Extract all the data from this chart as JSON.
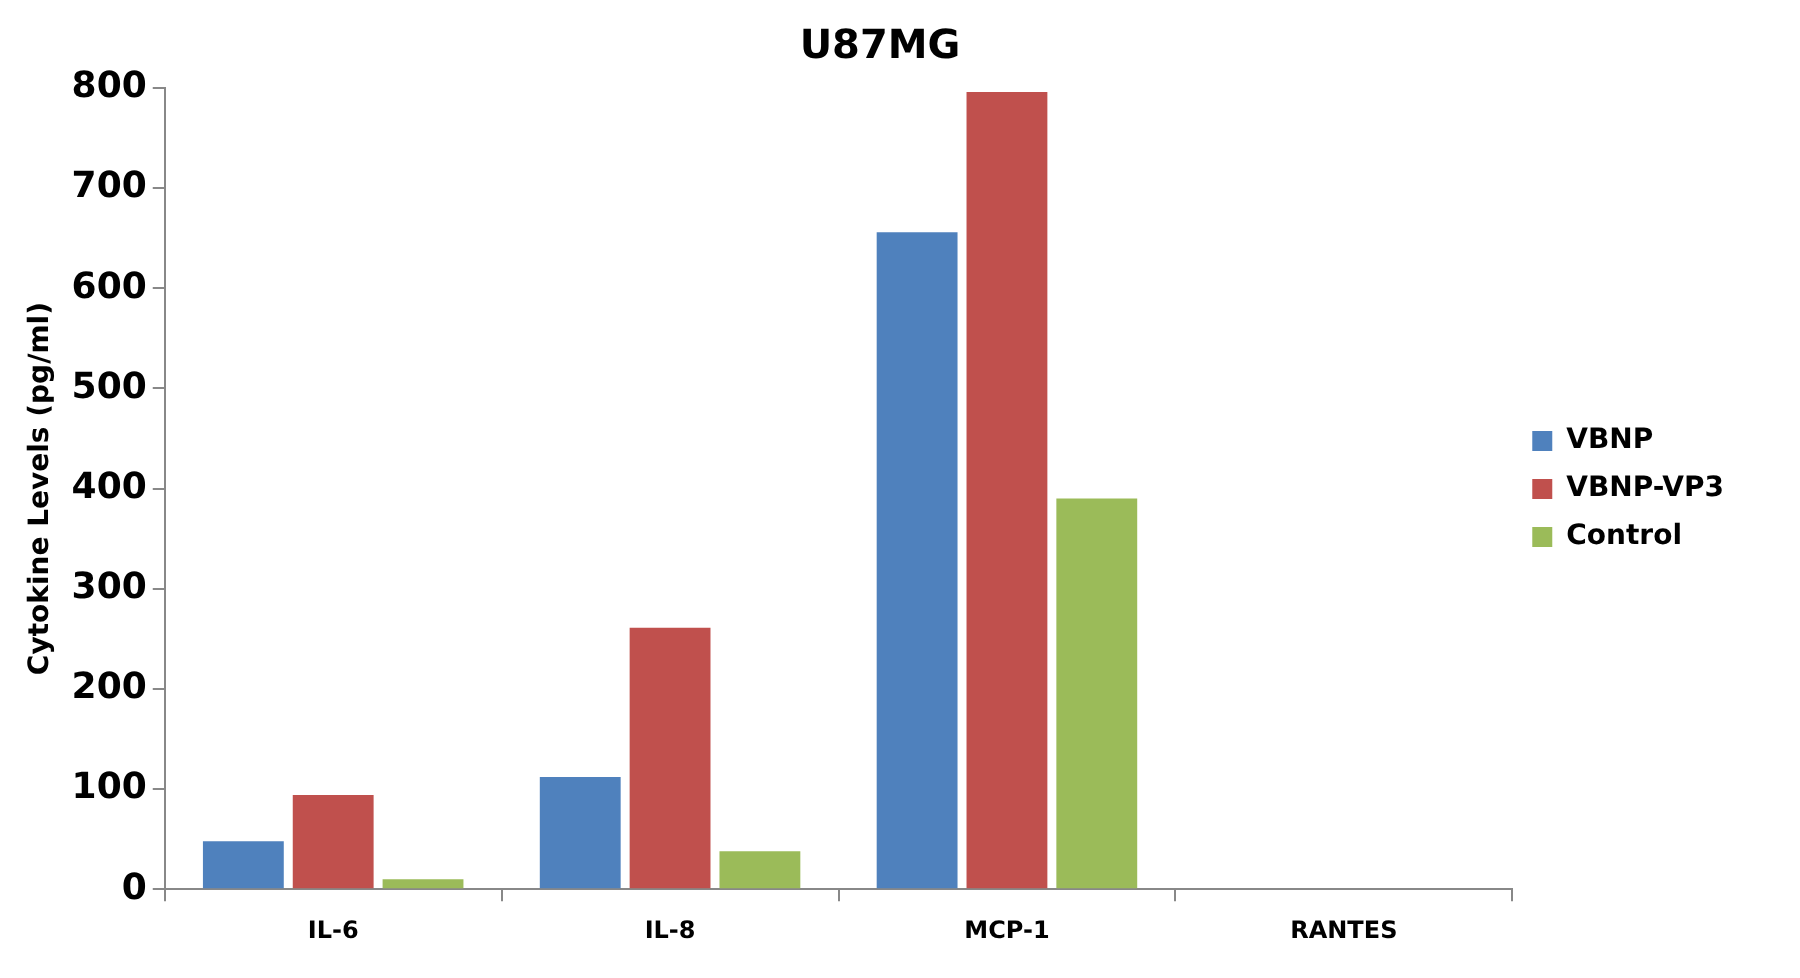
{
  "chart_data": {
    "type": "bar",
    "title": "U87MG",
    "ylabel": "Cytokine Levels (pg/ml)",
    "categories": [
      "IL-6",
      "IL-8",
      "MCP-1",
      "RANTES"
    ],
    "series": [
      {
        "name": "VBNP",
        "color": "#4f81bd",
        "values": [
          48,
          112,
          656,
          0
        ]
      },
      {
        "name": "VBNP-VP3",
        "color": "#c0504d",
        "values": [
          94,
          261,
          796,
          0
        ]
      },
      {
        "name": "Control",
        "color": "#9bbb59",
        "values": [
          10,
          38,
          390,
          0
        ]
      }
    ],
    "ylim": [
      0,
      800
    ],
    "yticks": [
      0,
      100,
      200,
      300,
      400,
      500,
      600,
      700,
      800
    ],
    "grid": false,
    "legend": "right"
  }
}
